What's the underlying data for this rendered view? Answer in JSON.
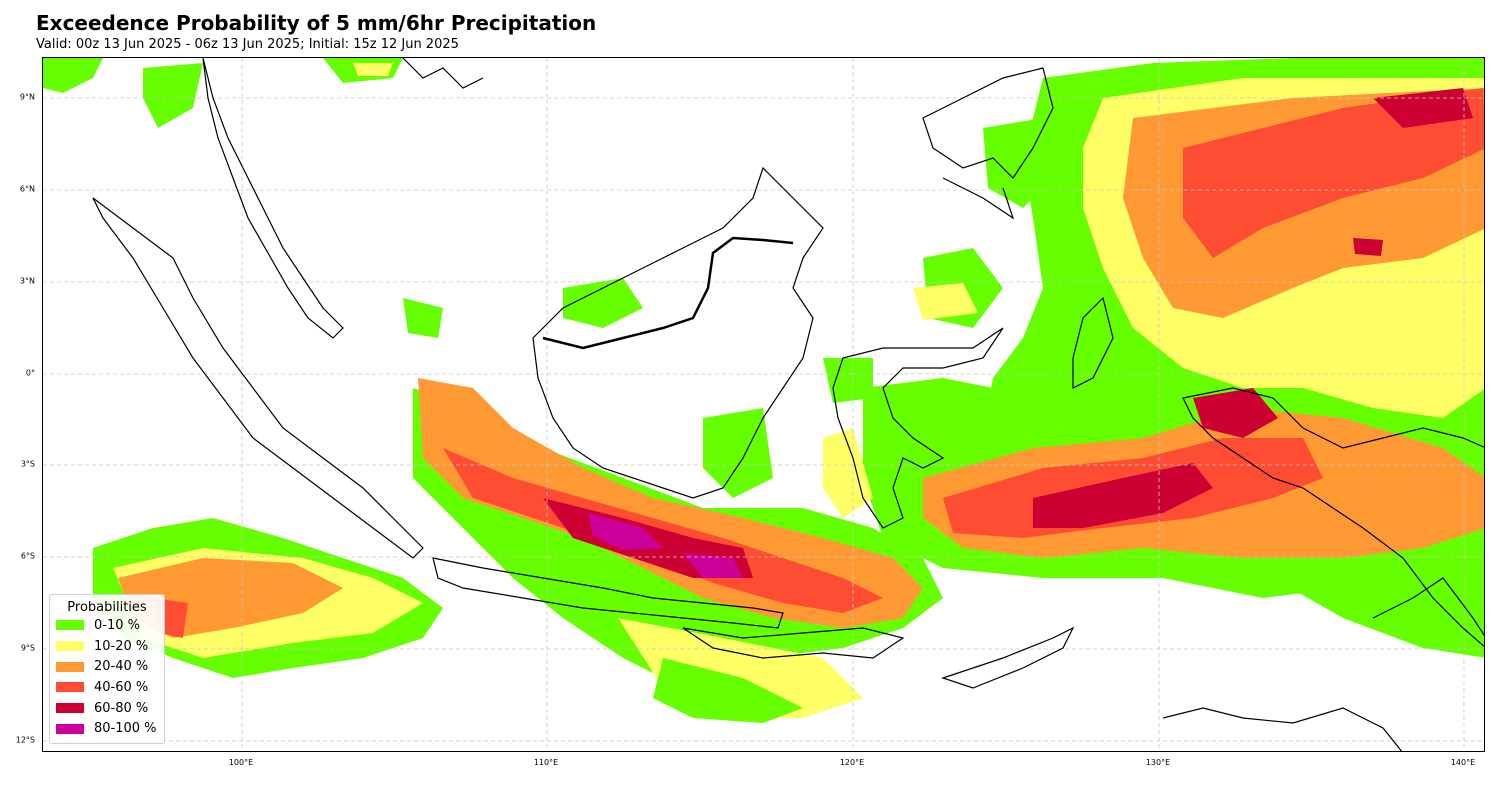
{
  "title": "Exceedence Probability of 5 mm/6hr Precipitation",
  "subtitle": "Valid: 00z 13 Jun 2025 - 06z 13 Jun 2025; Initial: 15z 12 Jun 2025",
  "lat_labels": [
    "9°N",
    "6°N",
    "3°N",
    "0°",
    "3°S",
    "6°S",
    "9°S",
    "12°S"
  ],
  "lon_labels": [
    "100°E",
    "110°E",
    "120°E",
    "130°E",
    "140°E"
  ],
  "legend": {
    "title": "Probabilities",
    "items": [
      {
        "label": "0-10 %",
        "color": "#66ff00"
      },
      {
        "label": "10-20 %",
        "color": "#ffff66"
      },
      {
        "label": "20-40 %",
        "color": "#ff9933"
      },
      {
        "label": "40-60 %",
        "color": "#ff4d33"
      },
      {
        "label": "60-80 %",
        "color": "#cc0033"
      },
      {
        "label": "80-100 %",
        "color": "#cc0099"
      }
    ]
  }
}
